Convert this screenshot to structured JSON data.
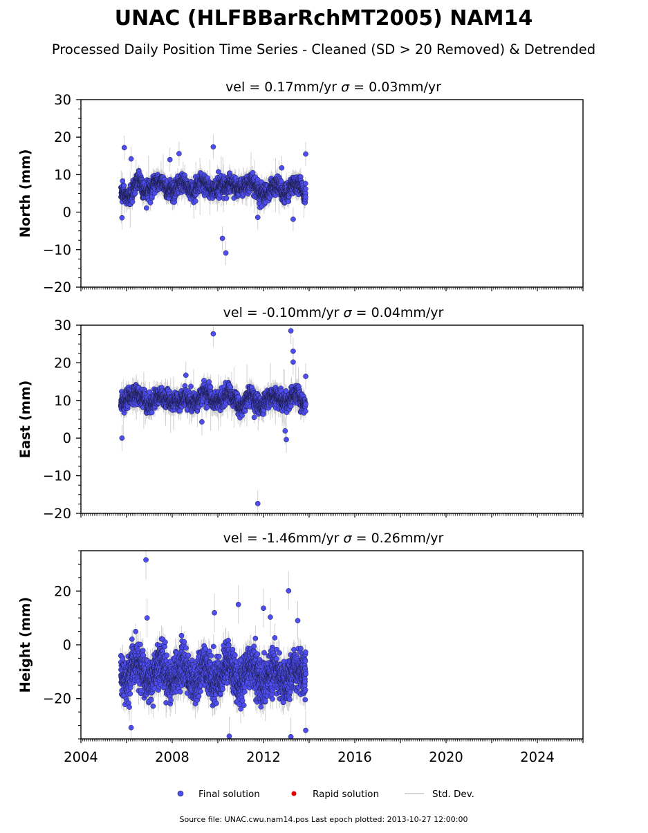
{
  "figure": {
    "title": "UNAC (HLFBBarRchMT2005) NAM14",
    "subtitle": "Processed Daily Position Time Series - Cleaned (SD > 20 Removed) & Detrended",
    "source_note": "Source file: UNAC.cwu.nam14.pos  Last epoch plotted: 2013-10-27 12:00:00"
  },
  "legend": {
    "placement": "bottom-center",
    "items": [
      {
        "label": "Final solution",
        "marker": "circle",
        "color": "#4e4ef0"
      },
      {
        "label": "Rapid solution",
        "marker": "circle",
        "color": "#e00000"
      },
      {
        "label": "Std. Dev.",
        "marker": "line",
        "color": "#c8c8c8"
      }
    ]
  },
  "colors": {
    "final_solution": "#4e4ef0",
    "point_edge": "#1a1a40",
    "std_dev": "#c8c8c8"
  },
  "chart_data": [
    {
      "type": "scatter",
      "component": "north",
      "title_parts": {
        "left": "vel = 0.17mm/yr",
        "sigma": "σ",
        "right": " = 0.03mm/yr"
      },
      "ylabel": "North (mm)",
      "xlim": [
        2004.0,
        2026.0
      ],
      "ylim": [
        -20,
        30
      ],
      "yticks": [
        -20,
        -10,
        0,
        10,
        20,
        30
      ],
      "ytick_labels": [
        "−20",
        "−10",
        "0",
        "10",
        "20",
        "30"
      ],
      "xticks": [
        2004,
        2008,
        2012,
        2016,
        2020,
        2024
      ],
      "xtick_labels": [],
      "grid": false,
      "data_range_years": [
        2005.75,
        2013.85
      ],
      "typical_level_mm": 6.5,
      "typical_spread_mm": 2.0,
      "typical_sd_mm": 2.0,
      "outliers": [
        {
          "x": 2005.9,
          "y": 17.2
        },
        {
          "x": 2006.2,
          "y": 14.2
        },
        {
          "x": 2007.9,
          "y": 14.0
        },
        {
          "x": 2008.3,
          "y": 15.6
        },
        {
          "x": 2009.8,
          "y": 17.4
        },
        {
          "x": 2010.2,
          "y": -7.0
        },
        {
          "x": 2010.35,
          "y": -10.9
        },
        {
          "x": 2011.75,
          "y": -1.4
        },
        {
          "x": 2013.3,
          "y": -1.9
        },
        {
          "x": 2013.85,
          "y": 15.5
        },
        {
          "x": 2005.8,
          "y": -1.5
        },
        {
          "x": 2012.8,
          "y": 11.8
        }
      ]
    },
    {
      "type": "scatter",
      "component": "east",
      "title_parts": {
        "left": "vel = -0.10mm/yr",
        "sigma": "σ",
        "right": " = 0.04mm/yr"
      },
      "ylabel": "East (mm)",
      "xlim": [
        2004.0,
        2026.0
      ],
      "ylim": [
        -20,
        30
      ],
      "yticks": [
        -20,
        -10,
        0,
        10,
        20,
        30
      ],
      "ytick_labels": [
        "−20",
        "−10",
        "0",
        "10",
        "20",
        "30"
      ],
      "xticks": [
        2004,
        2008,
        2012,
        2016,
        2020,
        2024
      ],
      "xtick_labels": [],
      "grid": false,
      "data_range_years": [
        2005.75,
        2013.85
      ],
      "typical_level_mm": 9.8,
      "typical_spread_mm": 2.0,
      "typical_sd_mm": 2.2,
      "outliers": [
        {
          "x": 2009.8,
          "y": 27.7
        },
        {
          "x": 2013.2,
          "y": 28.5
        },
        {
          "x": 2013.3,
          "y": 23.1
        },
        {
          "x": 2013.3,
          "y": 20.2
        },
        {
          "x": 2011.75,
          "y": -17.4
        },
        {
          "x": 2005.8,
          "y": 0.0
        },
        {
          "x": 2013.0,
          "y": -0.4
        },
        {
          "x": 2012.95,
          "y": 1.9
        },
        {
          "x": 2008.6,
          "y": 16.7
        },
        {
          "x": 2013.85,
          "y": 16.4
        },
        {
          "x": 2009.3,
          "y": 4.3
        }
      ]
    },
    {
      "type": "scatter",
      "component": "height",
      "title_parts": {
        "left": "vel = -1.46mm/yr",
        "sigma": "σ",
        "right": " = 0.26mm/yr"
      },
      "ylabel": "Height (mm)",
      "xlim": [
        2004.0,
        2026.0
      ],
      "ylim": [
        -35,
        35
      ],
      "yticks": [
        -20,
        0,
        20
      ],
      "ytick_labels": [
        "−20",
        "0",
        "20"
      ],
      "xticks": [
        2004,
        2008,
        2012,
        2016,
        2020,
        2024
      ],
      "xtick_labels": [
        "2004",
        "2008",
        "2012",
        "2016",
        "2020",
        "2024"
      ],
      "grid": false,
      "data_range_years": [
        2005.75,
        2013.85
      ],
      "typical_level_mm": -11.0,
      "typical_spread_mm": 7.0,
      "typical_sd_mm": 4.5,
      "outliers": [
        {
          "x": 2006.85,
          "y": 31.6
        },
        {
          "x": 2013.1,
          "y": 20.1
        },
        {
          "x": 2009.85,
          "y": 11.9
        },
        {
          "x": 2010.9,
          "y": 15.0
        },
        {
          "x": 2012.0,
          "y": 13.6
        },
        {
          "x": 2012.3,
          "y": 10.3
        },
        {
          "x": 2013.5,
          "y": 9.0
        },
        {
          "x": 2006.9,
          "y": 10.0
        },
        {
          "x": 2010.5,
          "y": -34.0
        },
        {
          "x": 2013.2,
          "y": -34.2
        },
        {
          "x": 2013.85,
          "y": -31.8
        },
        {
          "x": 2006.2,
          "y": -30.8
        }
      ]
    }
  ]
}
